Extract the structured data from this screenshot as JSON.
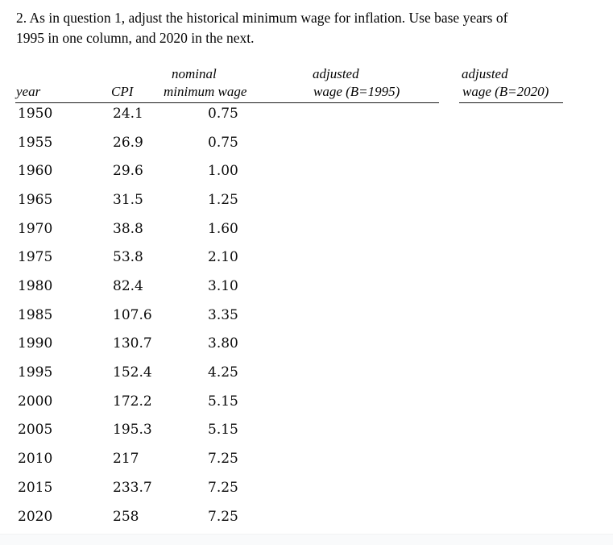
{
  "question": {
    "line1": "2. As in question 1, adjust the historical minimum wage for inflation. Use base years of",
    "line2": "1995 in one column, and 2020 in the next."
  },
  "table": {
    "headers": {
      "year": "year",
      "cpi": "CPI",
      "nominal_line1": "nominal",
      "nominal_line2": "minimum wage",
      "adjusted_1995_line1": "adjusted",
      "adjusted_1995_line2": "wage (B=1995)",
      "adjusted_2020_line1": "adjusted",
      "adjusted_2020_line2": "wage (B=2020)"
    },
    "rows": [
      {
        "year": "1950",
        "cpi": "24.1",
        "nominal_wage": "0.75",
        "adjusted_1995": "",
        "adjusted_2020": ""
      },
      {
        "year": "1955",
        "cpi": "26.9",
        "nominal_wage": "0.75",
        "adjusted_1995": "",
        "adjusted_2020": ""
      },
      {
        "year": "1960",
        "cpi": "29.6",
        "nominal_wage": "1.00",
        "adjusted_1995": "",
        "adjusted_2020": ""
      },
      {
        "year": "1965",
        "cpi": "31.5",
        "nominal_wage": "1.25",
        "adjusted_1995": "",
        "adjusted_2020": ""
      },
      {
        "year": "1970",
        "cpi": "38.8",
        "nominal_wage": "1.60",
        "adjusted_1995": "",
        "adjusted_2020": ""
      },
      {
        "year": "1975",
        "cpi": "53.8",
        "nominal_wage": "2.10",
        "adjusted_1995": "",
        "adjusted_2020": ""
      },
      {
        "year": "1980",
        "cpi": "82.4",
        "nominal_wage": "3.10",
        "adjusted_1995": "",
        "adjusted_2020": ""
      },
      {
        "year": "1985",
        "cpi": "107.6",
        "nominal_wage": "3.35",
        "adjusted_1995": "",
        "adjusted_2020": ""
      },
      {
        "year": "1990",
        "cpi": "130.7",
        "nominal_wage": "3.80",
        "adjusted_1995": "",
        "adjusted_2020": ""
      },
      {
        "year": "1995",
        "cpi": "152.4",
        "nominal_wage": "4.25",
        "adjusted_1995": "",
        "adjusted_2020": ""
      },
      {
        "year": "2000",
        "cpi": "172.2",
        "nominal_wage": "5.15",
        "adjusted_1995": "",
        "adjusted_2020": ""
      },
      {
        "year": "2005",
        "cpi": "195.3",
        "nominal_wage": "5.15",
        "adjusted_1995": "",
        "adjusted_2020": ""
      },
      {
        "year": "2010",
        "cpi": "217",
        "nominal_wage": "7.25",
        "adjusted_1995": "",
        "adjusted_2020": ""
      },
      {
        "year": "2015",
        "cpi": "233.7",
        "nominal_wage": "7.25",
        "adjusted_1995": "",
        "adjusted_2020": ""
      },
      {
        "year": "2020",
        "cpi": "258",
        "nominal_wage": "7.25",
        "adjusted_1995": "",
        "adjusted_2020": ""
      }
    ]
  },
  "colors": {
    "text": "#0a0a0a",
    "background": "#ffffff",
    "header_rule": "#1a1a1a",
    "page_edge_strip": "#f9fafb"
  }
}
